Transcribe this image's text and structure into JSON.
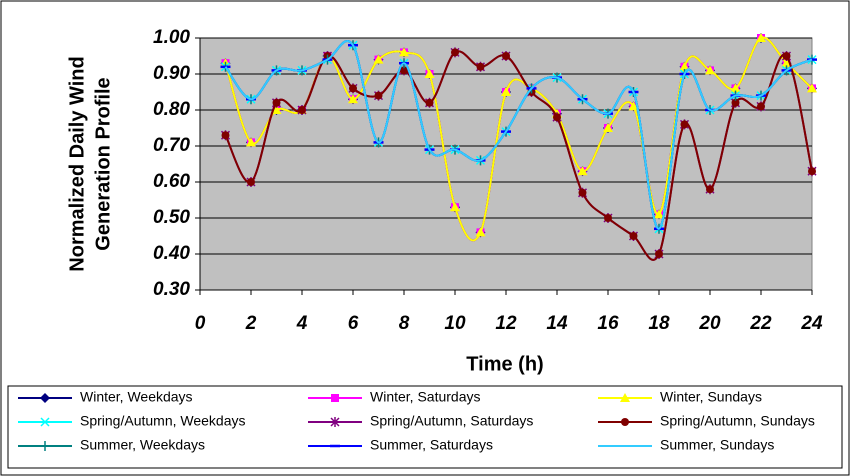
{
  "chart_data": {
    "type": "line",
    "xlabel": "Time (h)",
    "ylabel": [
      "Normalized Daily Wind",
      "Generation Profile"
    ],
    "x": [
      1,
      2,
      3,
      4,
      5,
      6,
      7,
      8,
      9,
      10,
      11,
      12,
      13,
      14,
      15,
      16,
      17,
      18,
      19,
      20,
      21,
      22,
      23,
      24
    ],
    "xlim": [
      0,
      24
    ],
    "xticks": [
      0,
      2,
      4,
      6,
      8,
      10,
      12,
      14,
      16,
      18,
      20,
      22,
      24
    ],
    "ylim": [
      0.3,
      1.0
    ],
    "yticks": [
      {
        "value": 0.3,
        "label": "0.30"
      },
      {
        "value": 0.4,
        "label": "0.40"
      },
      {
        "value": 0.5,
        "label": "0.50"
      },
      {
        "value": 0.6,
        "label": "0.60"
      },
      {
        "value": 0.7,
        "label": "0.70"
      },
      {
        "value": 0.8,
        "label": "0.80"
      },
      {
        "value": 0.9,
        "label": "0.90"
      },
      {
        "value": 1.0,
        "label": "1.00"
      }
    ],
    "grid": true,
    "background": "#c0c0c0",
    "series": [
      {
        "name": "Winter, Weekdays",
        "color": "#000080",
        "marker": "diamond",
        "values": [
          0.93,
          0.71,
          0.8,
          0.8,
          0.95,
          0.83,
          0.94,
          0.96,
          0.9,
          0.53,
          0.46,
          0.85,
          0.86,
          0.79,
          0.63,
          0.75,
          0.81,
          0.51,
          0.92,
          0.91,
          0.86,
          1.0,
          0.93,
          0.86
        ]
      },
      {
        "name": "Winter, Saturdays",
        "color": "#ff00ff",
        "marker": "square",
        "values": [
          0.93,
          0.71,
          0.8,
          0.8,
          0.95,
          0.83,
          0.94,
          0.96,
          0.9,
          0.53,
          0.46,
          0.85,
          0.86,
          0.79,
          0.63,
          0.75,
          0.81,
          0.51,
          0.92,
          0.91,
          0.86,
          1.0,
          0.93,
          0.86
        ]
      },
      {
        "name": "Winter, Sundays",
        "color": "#ffff00",
        "marker": "triangle",
        "values": [
          0.93,
          0.71,
          0.8,
          0.8,
          0.95,
          0.83,
          0.94,
          0.96,
          0.9,
          0.53,
          0.46,
          0.85,
          0.86,
          0.79,
          0.63,
          0.75,
          0.81,
          0.51,
          0.92,
          0.91,
          0.86,
          1.0,
          0.93,
          0.86
        ]
      },
      {
        "name": "Spring/Autumn, Weekdays",
        "color": "#00ffff",
        "marker": "x",
        "values": [
          0.92,
          0.83,
          0.91,
          0.91,
          0.94,
          0.98,
          0.71,
          0.93,
          0.69,
          0.69,
          0.66,
          0.74,
          0.86,
          0.89,
          0.83,
          0.79,
          0.85,
          0.47,
          0.9,
          0.8,
          0.84,
          0.84,
          0.91,
          0.94
        ]
      },
      {
        "name": "Spring/Autumn, Saturdays",
        "color": "#800080",
        "marker": "star",
        "values": [
          0.73,
          0.6,
          0.82,
          0.8,
          0.95,
          0.86,
          0.84,
          0.91,
          0.82,
          0.96,
          0.92,
          0.95,
          0.85,
          0.78,
          0.57,
          0.5,
          0.45,
          0.4,
          0.76,
          0.58,
          0.82,
          0.81,
          0.95,
          0.63
        ]
      },
      {
        "name": "Spring/Autumn, Sundays",
        "color": "#800000",
        "marker": "circle",
        "values": [
          0.73,
          0.6,
          0.82,
          0.8,
          0.95,
          0.86,
          0.84,
          0.91,
          0.82,
          0.96,
          0.92,
          0.95,
          0.85,
          0.78,
          0.57,
          0.5,
          0.45,
          0.4,
          0.76,
          0.58,
          0.82,
          0.81,
          0.95,
          0.63
        ]
      },
      {
        "name": "Summer, Weekdays",
        "color": "#008080",
        "marker": "plus",
        "values": [
          0.92,
          0.83,
          0.91,
          0.91,
          0.94,
          0.98,
          0.71,
          0.93,
          0.69,
          0.69,
          0.66,
          0.74,
          0.86,
          0.89,
          0.83,
          0.79,
          0.85,
          0.47,
          0.9,
          0.8,
          0.84,
          0.84,
          0.91,
          0.94
        ]
      },
      {
        "name": "Summer, Saturdays",
        "color": "#0000ff",
        "marker": "dash",
        "values": [
          0.92,
          0.83,
          0.91,
          0.91,
          0.94,
          0.98,
          0.71,
          0.93,
          0.69,
          0.69,
          0.66,
          0.74,
          0.86,
          0.89,
          0.83,
          0.79,
          0.85,
          0.47,
          0.9,
          0.8,
          0.84,
          0.84,
          0.91,
          0.94
        ]
      },
      {
        "name": "Summer, Sundays",
        "color": "#33ccff",
        "marker": "none",
        "values": [
          0.92,
          0.83,
          0.91,
          0.91,
          0.94,
          0.98,
          0.71,
          0.93,
          0.69,
          0.69,
          0.66,
          0.74,
          0.86,
          0.89,
          0.83,
          0.79,
          0.85,
          0.47,
          0.9,
          0.8,
          0.84,
          0.84,
          0.91,
          0.94
        ]
      }
    ]
  }
}
